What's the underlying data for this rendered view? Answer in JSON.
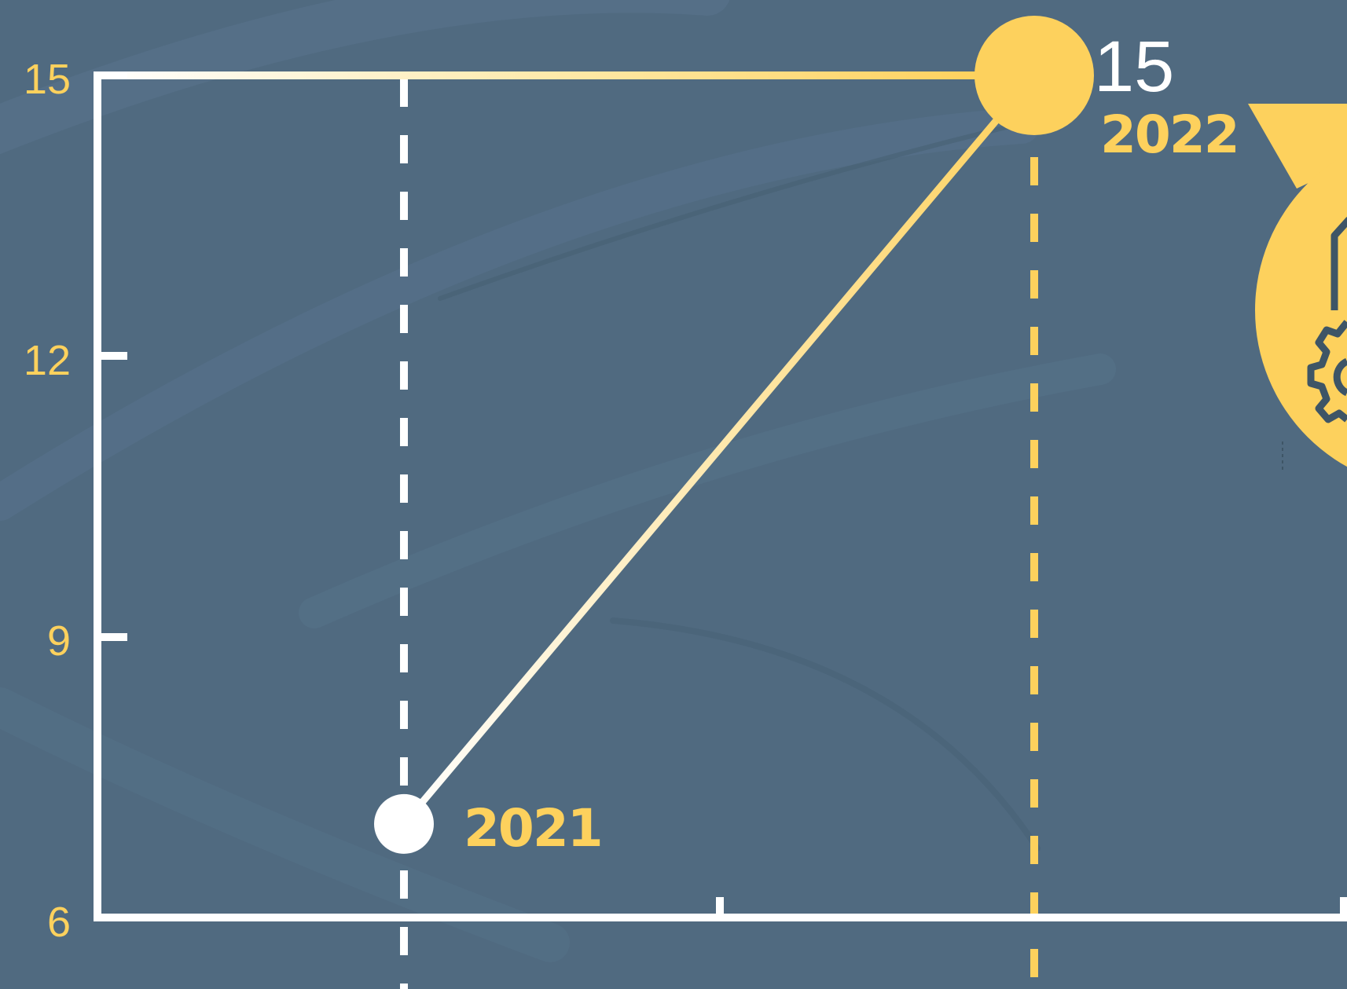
{
  "colors": {
    "background": "#506a80",
    "accent": "#fdd15d",
    "white": "#ffffff",
    "icon_stroke": "#3e5566"
  },
  "chart_data": {
    "type": "line",
    "title": "",
    "xlabel": "",
    "ylabel": "",
    "ylim": [
      6,
      15
    ],
    "y_ticks": [
      "6",
      "9",
      "12",
      "15"
    ],
    "grid": false,
    "points": [
      {
        "x": "2021",
        "y": 7
      },
      {
        "x": "2022",
        "y": 15
      }
    ],
    "annotations": {
      "value_label": "15"
    }
  },
  "badge": {
    "icon": "gear-document-icon"
  }
}
